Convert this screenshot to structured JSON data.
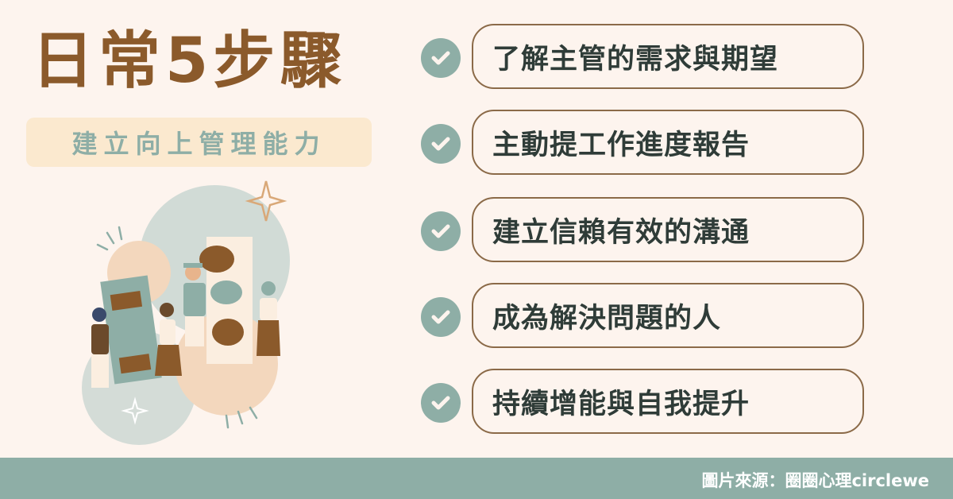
{
  "header": {
    "title": "日常5步驟",
    "subtitle": "建立向上管理能力"
  },
  "steps": [
    {
      "label": "了解主管的需求與期望",
      "icon": "check-icon"
    },
    {
      "label": "主動提工作進度報告",
      "icon": "check-icon"
    },
    {
      "label": "建立信賴有效的溝通",
      "icon": "check-icon"
    },
    {
      "label": "成為解決問題的人",
      "icon": "check-icon"
    },
    {
      "label": "持續增能與自我提升",
      "icon": "check-icon"
    }
  ],
  "footer": {
    "credit": "圖片來源：圈圈心理circlewe"
  },
  "colors": {
    "background": "#fdf4ee",
    "title": "#8b5a2b",
    "accent": "#8eaea6",
    "subtitle_bg": "#fbe9cf",
    "text": "#2f3c38",
    "pill_border": "#8b6a48"
  }
}
